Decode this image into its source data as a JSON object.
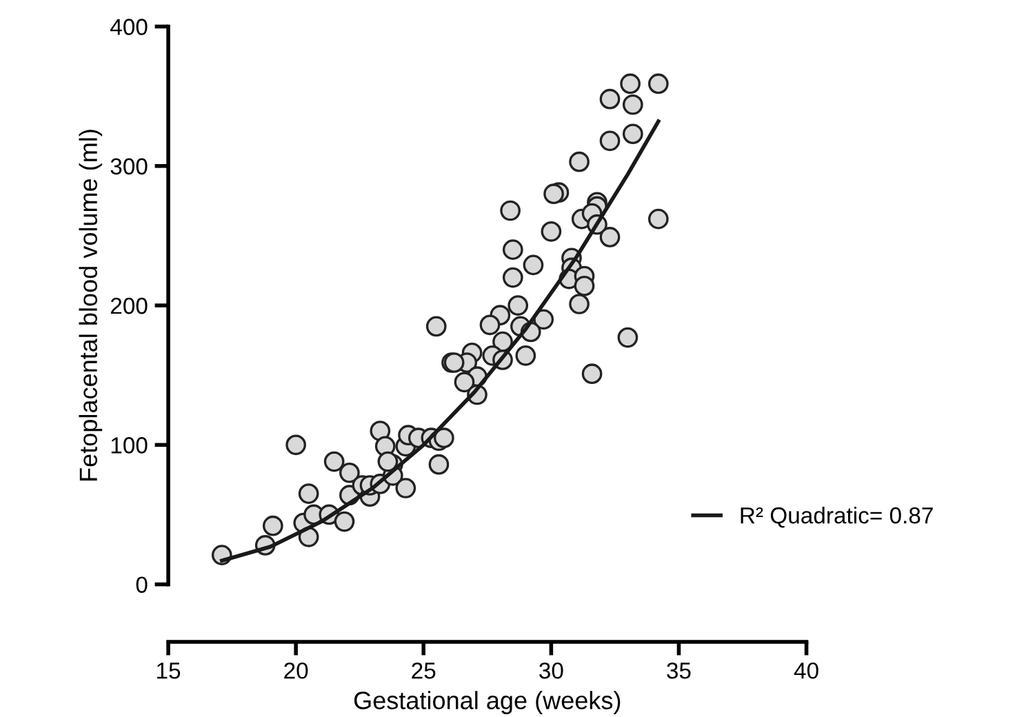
{
  "chart_data": {
    "type": "scatter",
    "xlabel": "Gestational age (weeks)",
    "ylabel": "Fetoplacental blood volume (ml)",
    "xlim": [
      15,
      40
    ],
    "xticks": [
      15,
      20,
      25,
      30,
      35,
      40
    ],
    "ylim": [
      0,
      400
    ],
    "yticks": [
      0,
      100,
      200,
      300,
      400
    ],
    "grid": false,
    "legend": "right",
    "marker": "circle",
    "series": [
      {
        "color": "#d9d9d9",
        "x": [
          17.1,
          18.8,
          19.1,
          20.0,
          20.5,
          20.3,
          20.5,
          20.7,
          21.3,
          21.9,
          21.5,
          22.1,
          22.1,
          22.6,
          22.9,
          22.9,
          23.3,
          23.8,
          23.8,
          24.3,
          23.3,
          23.5,
          23.6,
          24.3,
          24.4,
          24.8,
          25.3,
          25.6,
          25.8,
          25.6,
          25.5,
          26.1,
          33.1,
          34.2,
          32.3,
          33.2,
          32.3,
          33.2,
          31.1,
          30.3,
          30.1,
          28.4,
          30.0,
          31.2,
          31.8,
          31.8,
          31.6,
          31.8,
          32.3,
          34.2,
          28.5,
          29.3,
          28.5,
          30.8,
          30.8,
          30.7,
          31.3,
          31.3,
          31.1,
          33.0,
          31.6,
          28.7,
          29.7,
          28.0,
          27.6,
          28.8,
          29.2,
          28.1,
          27.7,
          28.1,
          29.0,
          26.9,
          26.7,
          26.2,
          27.1,
          26.6,
          27.1
        ],
        "values": [
          21,
          28,
          42,
          100,
          65,
          44,
          34,
          50,
          50,
          45,
          88,
          80,
          64,
          71,
          63,
          71,
          72,
          86,
          78,
          69,
          110,
          99,
          88,
          99,
          107,
          105,
          105,
          103,
          105,
          86,
          185,
          159,
          359,
          359,
          348,
          344,
          318,
          323,
          303,
          281,
          280,
          268,
          253,
          262,
          274,
          271,
          266,
          258,
          249,
          262,
          240,
          229,
          220,
          234,
          227,
          219,
          221,
          214,
          201,
          177,
          151,
          200,
          190,
          193,
          186,
          185,
          181,
          174,
          164,
          161,
          164,
          166,
          159,
          159,
          149,
          145,
          136
        ]
      },
      {
        "type": "line",
        "name": "R² Quadratic= 0.87",
        "color": "#1a1a1a",
        "line_style": "solid",
        "marker": "none",
        "x": [
          17.1,
          19,
          21,
          23,
          25,
          27,
          29,
          31,
          33,
          34.2
        ],
        "values": [
          17,
          27,
          45,
          69,
          100,
          138,
          183,
          235,
          294,
          332
        ]
      }
    ]
  }
}
